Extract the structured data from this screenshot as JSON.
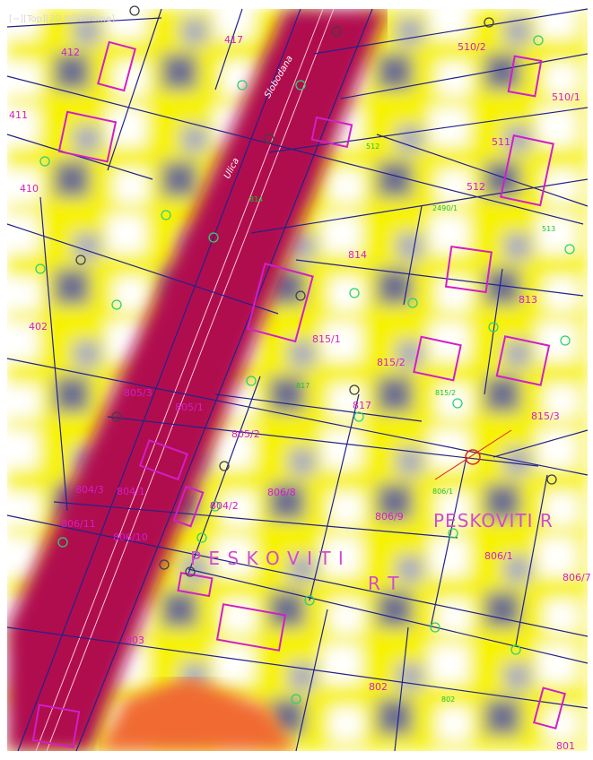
{
  "viewport": {
    "label": "[−][Top][2D Wireframe]"
  },
  "streets": [
    "Slobodana",
    "Ulica"
  ],
  "place_names": [
    "P E S K O V I T I",
    "R T",
    "PESKOVITI R"
  ],
  "parcels": [
    "412",
    "417",
    "411",
    "410",
    "402",
    "510/2",
    "510/1",
    "511",
    "512",
    "814",
    "813",
    "815/1",
    "815/2",
    "815/3",
    "817",
    "805/3",
    "805/1",
    "805/2",
    "806/8",
    "806/9",
    "804/3",
    "804/1",
    "804/2",
    "806/11",
    "806/10",
    "806/1",
    "806/7",
    "803",
    "802",
    "801"
  ],
  "green_labels": [
    "512",
    "814",
    "2490/1",
    "513",
    "817",
    "815/2",
    "806/1",
    "802"
  ]
}
